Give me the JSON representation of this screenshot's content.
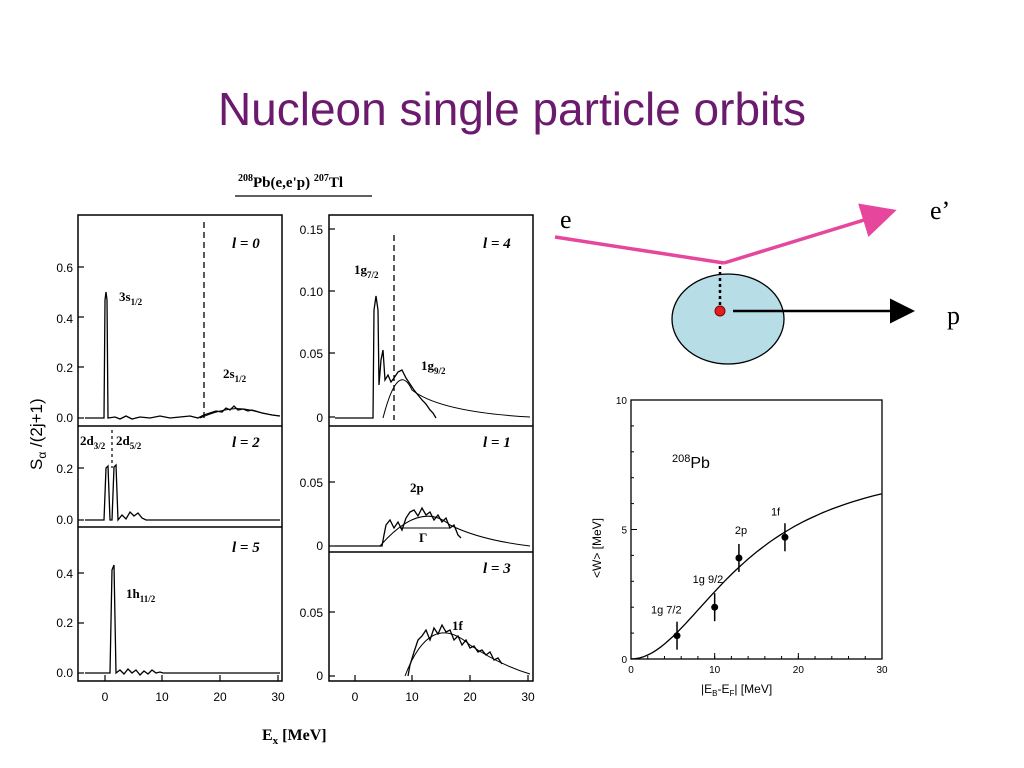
{
  "slide": {
    "title": "Nucleon single particle orbits"
  },
  "spectra": {
    "reaction": {
      "mass_pb": "208",
      "core": "Pb(e,e'p) ",
      "mass_tl": "207",
      "product": "Tl"
    },
    "ylabel": {
      "s": "S",
      "alpha": "α",
      "rest": " /(2j+1)"
    },
    "xlabel": {
      "e": "E",
      "sub": "x",
      "rest": " [MeV]"
    },
    "x_ticks": [
      "0",
      "10",
      "20",
      "30"
    ],
    "panels": [
      {
        "label": "l = 0",
        "y_ticks": [
          "0.6",
          "0.4",
          "0.2",
          "0.0"
        ],
        "peaks": [
          {
            "name": "3s",
            "sub": "1/2"
          },
          {
            "name": "2s",
            "sub": "1/2"
          }
        ]
      },
      {
        "label": "l = 2",
        "y_ticks": [
          "0.2",
          "0.0"
        ],
        "peaks": [
          {
            "name": "2d",
            "sub": "3/2"
          },
          {
            "name": "2d",
            "sub": "5/2"
          }
        ]
      },
      {
        "label": "l = 5",
        "y_ticks": [
          "0.4",
          "0.2",
          "0.0"
        ],
        "peaks": [
          {
            "name": "1h",
            "sub": "11/2"
          }
        ]
      },
      {
        "label": "l = 4",
        "y_ticks": [
          "0.15",
          "0.10",
          "0.05",
          "0"
        ],
        "peaks": [
          {
            "name": "1g",
            "sub": "7/2"
          },
          {
            "name": "1g",
            "sub": "9/2"
          }
        ]
      },
      {
        "label": "l = 1",
        "y_ticks": [
          "0.05",
          "0"
        ],
        "peaks": [
          {
            "name": "2p",
            "sub": ""
          },
          {
            "name": "Γ",
            "sub": ""
          }
        ]
      },
      {
        "label": "l = 3",
        "y_ticks": [
          "0.05",
          "0"
        ],
        "peaks": [
          {
            "name": "1f",
            "sub": ""
          }
        ]
      }
    ]
  },
  "diagram": {
    "in_label": "e",
    "out_label": "e’",
    "proton_label": "p",
    "colors": {
      "beam": "#e6479c",
      "nucleus": "#b7dde6",
      "proton": "#e02020"
    }
  },
  "width_plot": {
    "nucleus": {
      "mass": "208",
      "symbol": "Pb"
    },
    "ylabel": "<W> [MeV]",
    "xlabel": {
      "bar_open": "|E",
      "b": "B",
      "minus": "-E",
      "f": "F",
      "bar_close": "|  [MeV]"
    },
    "x_ticks": [
      "0",
      "10",
      "20",
      "30"
    ],
    "y_ticks": [
      "0",
      "5",
      "10"
    ],
    "points": [
      {
        "label": "1g 7/2",
        "x": 5.5,
        "y": 0.9
      },
      {
        "label": "1g 9/2",
        "x": 10.0,
        "y": 2.0
      },
      {
        "label": "2p",
        "x": 12.9,
        "y": 3.9
      },
      {
        "label": "1f",
        "x": 18.4,
        "y": 4.7
      }
    ]
  }
}
